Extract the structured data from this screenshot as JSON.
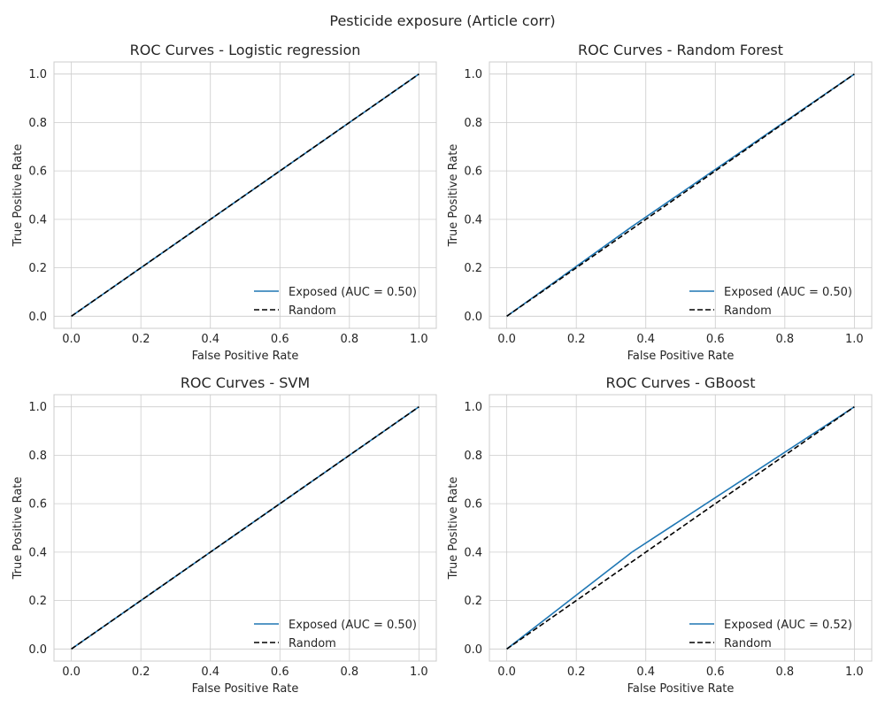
{
  "figure": {
    "suptitle": "Pesticide exposure (Article corr)"
  },
  "colors": {
    "curve": "#1f77b4",
    "random": "#000000",
    "grid": "#cccccc",
    "spine": "#cccccc"
  },
  "chart_data": [
    {
      "type": "line",
      "title": "ROC Curves - Logistic regression",
      "xlabel": "False Positive Rate",
      "ylabel": "True Positive Rate",
      "xlim": [
        -0.05,
        1.05
      ],
      "ylim": [
        -0.05,
        1.05
      ],
      "xticks": [
        "0.0",
        "0.2",
        "0.4",
        "0.6",
        "0.8",
        "1.0"
      ],
      "yticks": [
        "0.0",
        "0.2",
        "0.4",
        "0.6",
        "0.8",
        "1.0"
      ],
      "grid": true,
      "legend_position": "lower right",
      "series": [
        {
          "name": "Exposed (AUC = 0.50)",
          "style": "solid",
          "x": [
            0.0,
            1.0
          ],
          "y": [
            0.0,
            1.0
          ]
        },
        {
          "name": "Random",
          "style": "dashed",
          "x": [
            0.0,
            1.0
          ],
          "y": [
            0.0,
            1.0
          ]
        }
      ]
    },
    {
      "type": "line",
      "title": "ROC Curves - Random Forest",
      "xlabel": "False Positive Rate",
      "ylabel": "True Positive Rate",
      "xlim": [
        -0.05,
        1.05
      ],
      "ylim": [
        -0.05,
        1.05
      ],
      "xticks": [
        "0.0",
        "0.2",
        "0.4",
        "0.6",
        "0.8",
        "1.0"
      ],
      "yticks": [
        "0.0",
        "0.2",
        "0.4",
        "0.6",
        "0.8",
        "1.0"
      ],
      "grid": true,
      "legend_position": "lower right",
      "series": [
        {
          "name": "Exposed (AUC = 0.50)",
          "style": "solid",
          "x": [
            0.0,
            0.36,
            1.0
          ],
          "y": [
            0.0,
            0.37,
            1.0
          ]
        },
        {
          "name": "Random",
          "style": "dashed",
          "x": [
            0.0,
            1.0
          ],
          "y": [
            0.0,
            1.0
          ]
        }
      ]
    },
    {
      "type": "line",
      "title": "ROC Curves - SVM",
      "xlabel": "False Positive Rate",
      "ylabel": "True Positive Rate",
      "xlim": [
        -0.05,
        1.05
      ],
      "ylim": [
        -0.05,
        1.05
      ],
      "xticks": [
        "0.0",
        "0.2",
        "0.4",
        "0.6",
        "0.8",
        "1.0"
      ],
      "yticks": [
        "0.0",
        "0.2",
        "0.4",
        "0.6",
        "0.8",
        "1.0"
      ],
      "grid": true,
      "legend_position": "lower right",
      "series": [
        {
          "name": "Exposed (AUC = 0.50)",
          "style": "solid",
          "x": [
            0.0,
            1.0
          ],
          "y": [
            0.0,
            1.0
          ]
        },
        {
          "name": "Random",
          "style": "dashed",
          "x": [
            0.0,
            1.0
          ],
          "y": [
            0.0,
            1.0
          ]
        }
      ]
    },
    {
      "type": "line",
      "title": "ROC Curves - GBoost",
      "xlabel": "False Positive Rate",
      "ylabel": "True Positive Rate",
      "xlim": [
        -0.05,
        1.05
      ],
      "ylim": [
        -0.05,
        1.05
      ],
      "xticks": [
        "0.0",
        "0.2",
        "0.4",
        "0.6",
        "0.8",
        "1.0"
      ],
      "yticks": [
        "0.0",
        "0.2",
        "0.4",
        "0.6",
        "0.8",
        "1.0"
      ],
      "grid": true,
      "legend_position": "lower right",
      "series": [
        {
          "name": "Exposed (AUC = 0.52)",
          "style": "solid",
          "x": [
            0.0,
            0.36,
            1.0
          ],
          "y": [
            0.0,
            0.4,
            1.0
          ]
        },
        {
          "name": "Random",
          "style": "dashed",
          "x": [
            0.0,
            1.0
          ],
          "y": [
            0.0,
            1.0
          ]
        }
      ]
    }
  ]
}
